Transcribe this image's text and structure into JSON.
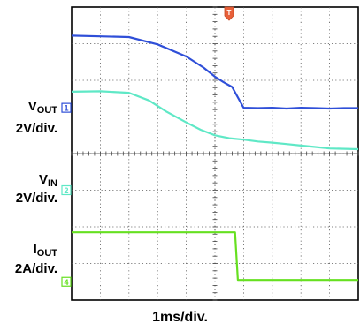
{
  "chart_data": {
    "type": "line",
    "grid": true,
    "divisions": {
      "x": 10,
      "y": 8
    },
    "timebase_label": "1ms/div.",
    "trigger_marker": "T",
    "x_range": [
      0,
      10
    ],
    "y_range": [
      0,
      8
    ],
    "channels": [
      {
        "ref": "1",
        "color": "#2f4fd8",
        "label_main": "V",
        "label_sub": "OUT",
        "scale": "2V/div.",
        "ground_div": 5.25,
        "x": [
          0,
          1,
          2,
          3,
          4,
          4.6,
          5,
          5.3,
          5.6,
          6.0,
          6.5,
          7.0,
          7.5,
          8.0,
          8.5,
          9.0,
          9.5,
          10
        ],
        "y": [
          7.22,
          7.2,
          7.18,
          6.98,
          6.65,
          6.35,
          6.1,
          5.95,
          5.82,
          5.25,
          5.24,
          5.25,
          5.23,
          5.25,
          5.24,
          5.23,
          5.24,
          5.24
        ]
      },
      {
        "ref": "2",
        "color": "#5fe8c6",
        "label_main": "V",
        "label_sub": "IN",
        "scale": "2V/div.",
        "ground_div": 3.0,
        "x": [
          0,
          1,
          2,
          2.7,
          3.3,
          4.0,
          4.5,
          5.0,
          5.5,
          6.0,
          6.5,
          7.0,
          7.5,
          8.0,
          8.5,
          9.0,
          10
        ],
        "y": [
          5.69,
          5.7,
          5.66,
          5.45,
          5.15,
          4.85,
          4.65,
          4.5,
          4.42,
          4.38,
          4.33,
          4.3,
          4.26,
          4.22,
          4.18,
          4.14,
          4.12
        ]
      },
      {
        "ref": "4",
        "color": "#66e020",
        "label_main": "I",
        "label_sub": "OUT",
        "scale": "2A/div.",
        "ground_div": 0.5,
        "x": [
          0,
          1,
          2,
          3,
          4,
          5,
          5.7,
          5.8,
          6.5,
          7,
          8,
          9,
          10
        ],
        "y": [
          1.85,
          1.85,
          1.85,
          1.85,
          1.85,
          1.85,
          1.85,
          0.55,
          0.55,
          0.55,
          0.55,
          0.55,
          0.55
        ]
      }
    ]
  }
}
